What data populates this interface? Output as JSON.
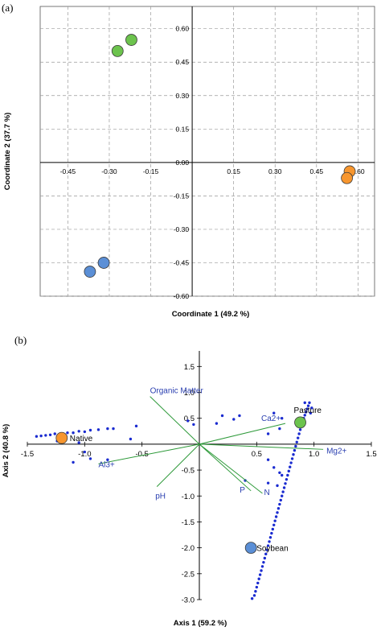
{
  "chart_data": [
    {
      "panel": "(a)",
      "type": "scatter",
      "xlabel": "Coordinate 1 (49.2 %)",
      "ylabel": "Coordinate 2 (37.7 %)",
      "xlim": [
        -0.55,
        0.66
      ],
      "ylim": [
        -0.6,
        0.7
      ],
      "x_ticks": [
        -0.45,
        -0.3,
        -0.15,
        0.15,
        0.3,
        0.45,
        0.6
      ],
      "x_tick_labels": [
        "-0.45",
        "-0.30",
        "-0.15",
        "0.15",
        "0.30",
        "0.45",
        "0.60"
      ],
      "y_ticks": [
        0.6,
        0.45,
        0.3,
        0.15,
        0.0,
        -0.15,
        -0.3,
        -0.45,
        -0.6
      ],
      "y_tick_labels": [
        "0.60",
        "0.45",
        "0.30",
        "0.15",
        "0.00",
        "-0.15",
        "-0.30",
        "-0.45",
        "-0.60"
      ],
      "grid": true,
      "series": [
        {
          "color": "#5b8fd6",
          "points": [
            [
              -0.37,
              -0.49
            ],
            [
              -0.32,
              -0.45
            ]
          ]
        },
        {
          "color": "#6cc34d",
          "points": [
            [
              -0.27,
              0.5
            ],
            [
              -0.22,
              0.55
            ]
          ]
        },
        {
          "color": "#f7962e",
          "points": [
            [
              0.57,
              -0.04
            ],
            [
              0.56,
              -0.07
            ]
          ]
        }
      ]
    },
    {
      "panel": "(b)",
      "type": "scatter",
      "xlabel": "Axis 1 (59.2 %)",
      "ylabel": "Axis 2 (40.8 %)",
      "xlim": [
        -1.5,
        1.5
      ],
      "ylim": [
        -3.0,
        1.8
      ],
      "x_ticks": [
        -1.5,
        -1.0,
        -0.5,
        0.5,
        1.0,
        1.5
      ],
      "x_tick_labels": [
        "-1.5",
        "-1.0",
        "-0.5",
        "0.5",
        "1.0",
        "1.5"
      ],
      "y_ticks": [
        1.5,
        1.0,
        0.5,
        -0.5,
        -1.0,
        -1.5,
        -2.0,
        -2.5,
        -3.0
      ],
      "y_tick_labels": [
        "1.5",
        "1.0",
        "0.5",
        "-0.5",
        "-1.0",
        "-1.5",
        "-2.0",
        "-2.5",
        "-3.0"
      ],
      "samples": [
        {
          "name": "Native",
          "x": -1.2,
          "y": 0.12,
          "color": "#f7962e"
        },
        {
          "name": "Pasture",
          "x": 0.88,
          "y": 0.42,
          "color": "#6cc34d"
        },
        {
          "name": "Soybean",
          "x": 0.45,
          "y": -2.0,
          "color": "#5b8fd6"
        }
      ],
      "vectors": [
        {
          "name": "Organic Matter",
          "x": -0.43,
          "y": 0.92
        },
        {
          "name": "Ca2+",
          "x": 0.75,
          "y": 0.4
        },
        {
          "name": "Mg2+",
          "x": 1.08,
          "y": -0.1
        },
        {
          "name": "Al3+",
          "x": -0.88,
          "y": -0.38
        },
        {
          "name": "pH",
          "x": -0.37,
          "y": -0.82
        },
        {
          "name": "P",
          "x": 0.45,
          "y": -0.9
        },
        {
          "name": "N",
          "x": 0.55,
          "y": -0.95
        }
      ],
      "points_color": "#1a2bd0",
      "points": [
        [
          -1.42,
          0.15
        ],
        [
          -1.38,
          0.16
        ],
        [
          -1.34,
          0.17
        ],
        [
          -1.3,
          0.18
        ],
        [
          -1.26,
          0.2
        ],
        [
          -1.24,
          0.06
        ],
        [
          -1.2,
          0.04
        ],
        [
          -1.15,
          0.22
        ],
        [
          -1.1,
          0.22
        ],
        [
          -1.05,
          0.25
        ],
        [
          -1.0,
          0.24
        ],
        [
          -0.95,
          0.27
        ],
        [
          -0.88,
          0.28
        ],
        [
          -0.8,
          0.3
        ],
        [
          -0.75,
          0.3
        ],
        [
          -0.55,
          0.35
        ],
        [
          -0.6,
          0.1
        ],
        [
          -1.05,
          0.03
        ],
        [
          -1.0,
          -0.15
        ],
        [
          -0.95,
          -0.28
        ],
        [
          -1.1,
          -0.35
        ],
        [
          -0.8,
          -0.3
        ],
        [
          -0.1,
          0.45
        ],
        [
          -0.05,
          0.38
        ],
        [
          0.15,
          0.4
        ],
        [
          0.3,
          0.48
        ],
        [
          0.2,
          0.55
        ],
        [
          0.35,
          0.55
        ],
        [
          0.65,
          0.6
        ],
        [
          0.72,
          0.5
        ],
        [
          0.6,
          -0.3
        ],
        [
          0.65,
          -0.45
        ],
        [
          0.7,
          -0.55
        ],
        [
          0.72,
          -0.6
        ],
        [
          0.6,
          -0.75
        ],
        [
          0.68,
          -0.8
        ],
        [
          0.92,
          0.8
        ],
        [
          0.96,
          0.8
        ],
        [
          0.95,
          0.74
        ],
        [
          0.94,
          0.68
        ],
        [
          0.93,
          0.62
        ],
        [
          0.92,
          0.56
        ],
        [
          0.91,
          0.5
        ],
        [
          0.9,
          0.44
        ],
        [
          0.89,
          0.36
        ],
        [
          0.88,
          0.28
        ],
        [
          0.87,
          0.2
        ],
        [
          0.86,
          0.12
        ],
        [
          0.85,
          0.04
        ],
        [
          0.84,
          -0.04
        ],
        [
          0.83,
          -0.12
        ],
        [
          0.82,
          -0.2
        ],
        [
          0.81,
          -0.28
        ],
        [
          0.8,
          -0.36
        ],
        [
          0.79,
          -0.44
        ],
        [
          0.78,
          -0.52
        ],
        [
          0.77,
          -0.6
        ],
        [
          0.76,
          -0.68
        ],
        [
          0.75,
          -0.76
        ],
        [
          0.74,
          -0.84
        ],
        [
          0.73,
          -0.92
        ],
        [
          0.72,
          -1.0
        ],
        [
          0.71,
          -1.08
        ],
        [
          0.7,
          -1.16
        ],
        [
          0.69,
          -1.24
        ],
        [
          0.68,
          -1.32
        ],
        [
          0.67,
          -1.4
        ],
        [
          0.66,
          -1.48
        ],
        [
          0.65,
          -1.56
        ],
        [
          0.64,
          -1.64
        ],
        [
          0.63,
          -1.72
        ],
        [
          0.62,
          -1.8
        ],
        [
          0.61,
          -1.88
        ],
        [
          0.6,
          -1.96
        ],
        [
          0.59,
          -2.04
        ],
        [
          0.58,
          -2.12
        ],
        [
          0.57,
          -2.2
        ],
        [
          0.56,
          -2.28
        ],
        [
          0.55,
          -2.36
        ],
        [
          0.54,
          -2.44
        ],
        [
          0.53,
          -2.52
        ],
        [
          0.52,
          -2.6
        ],
        [
          0.51,
          -2.68
        ],
        [
          0.5,
          -2.76
        ],
        [
          0.49,
          -2.84
        ],
        [
          0.48,
          -2.92
        ],
        [
          0.46,
          -2.98
        ],
        [
          0.7,
          0.3
        ],
        [
          0.6,
          0.2
        ],
        [
          0.4,
          -0.7
        ],
        [
          0.98,
          0.7
        ],
        [
          0.97,
          0.6
        ]
      ]
    }
  ]
}
